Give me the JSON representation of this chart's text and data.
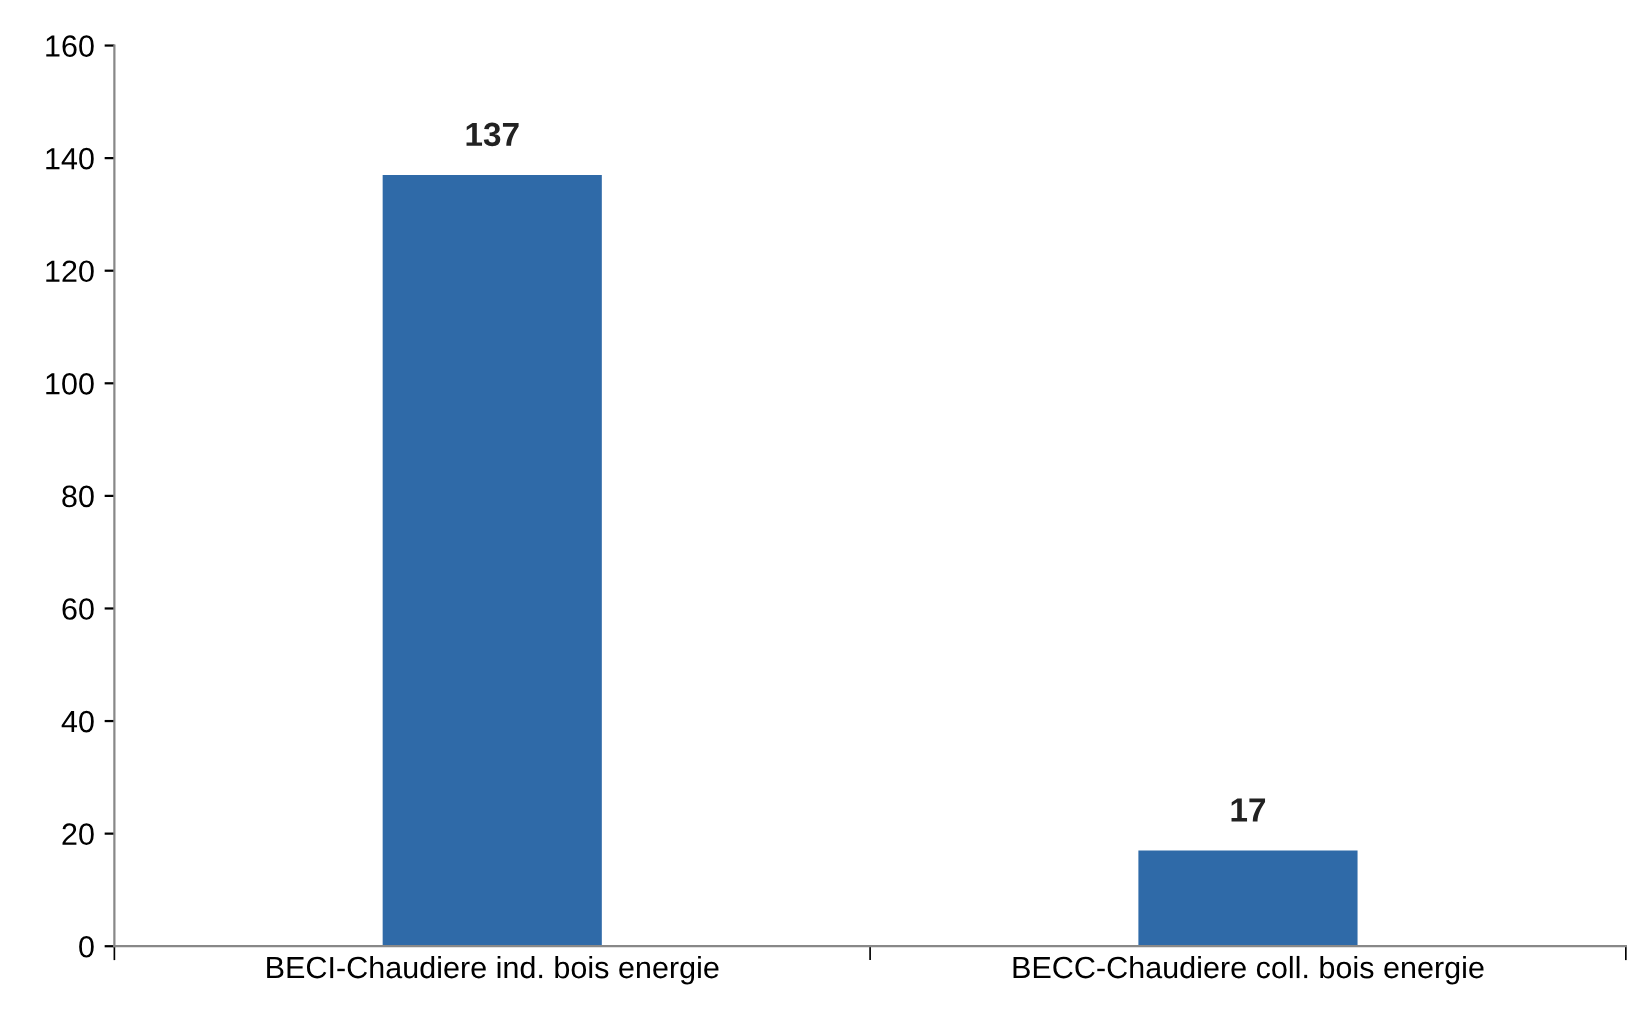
{
  "chart_data": {
    "type": "bar",
    "categories": [
      "BECI-Chaudiere ind. bois energie",
      "BECC-Chaudiere coll. bois energie"
    ],
    "values": [
      137,
      17
    ],
    "color": "#2f6aa8",
    "ylim": [
      0,
      160
    ],
    "yticks": [
      0,
      20,
      40,
      60,
      80,
      100,
      120,
      140,
      160
    ],
    "grid": false,
    "data_labels": true
  }
}
